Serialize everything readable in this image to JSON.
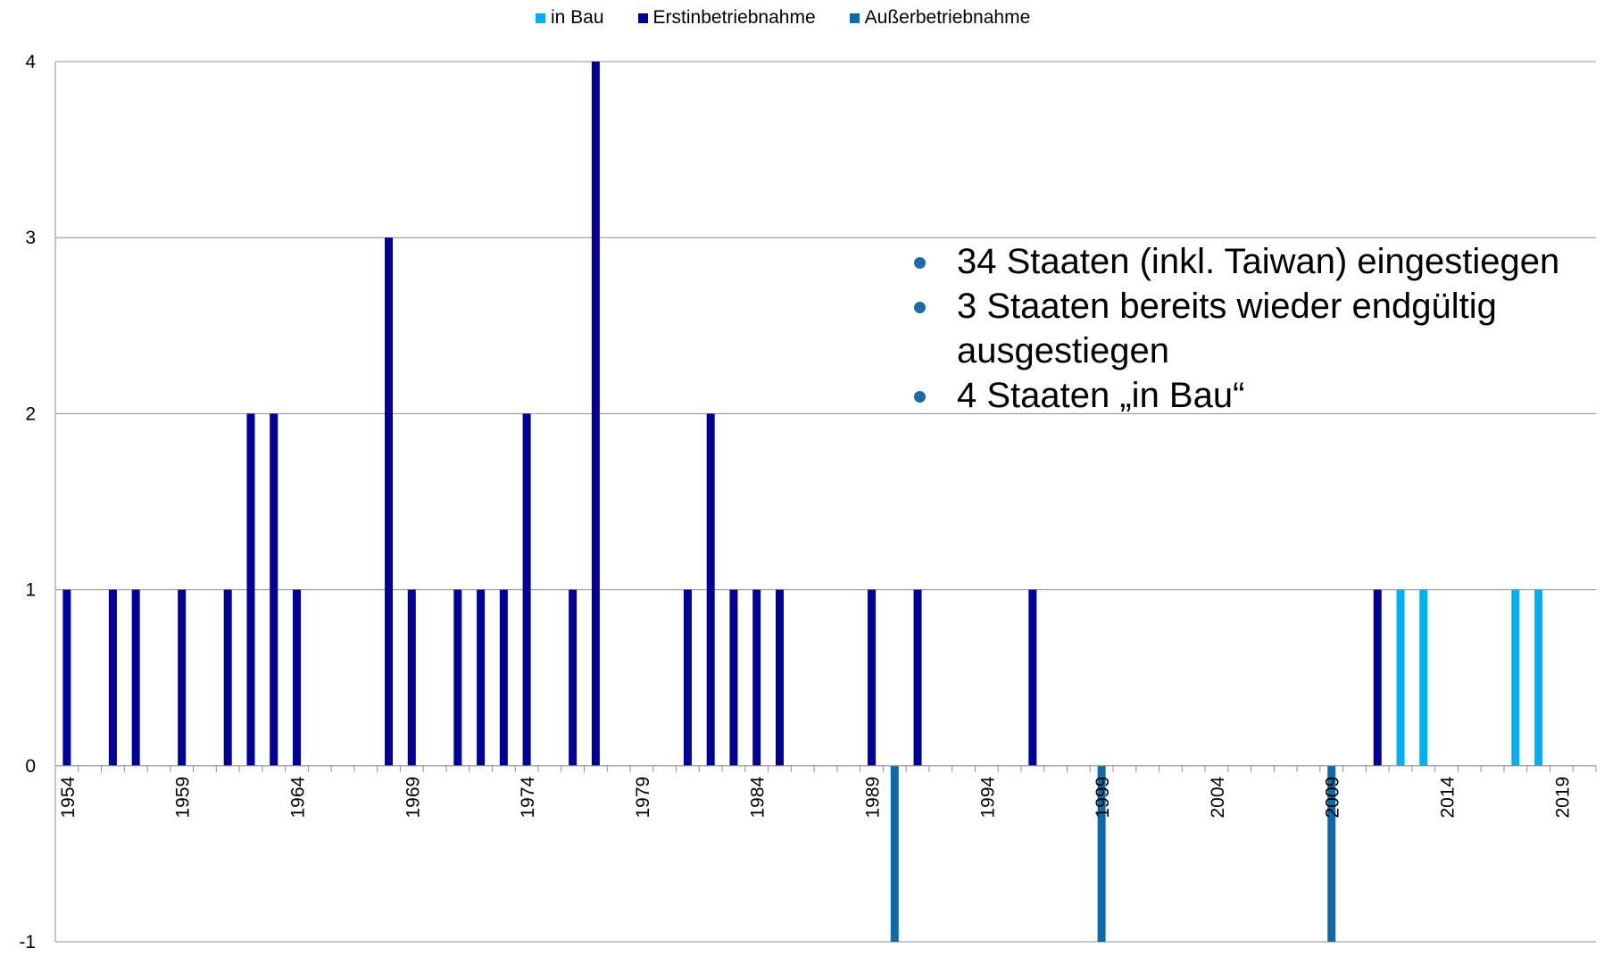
{
  "chart_data": {
    "type": "bar",
    "title": "",
    "xlabel": "",
    "ylabel": "",
    "ylim": [
      -1,
      4
    ],
    "yticks": [
      -1,
      0,
      1,
      2,
      3,
      4
    ],
    "x_start": 1954,
    "x_end": 2020,
    "x_tick_labels": [
      "1954",
      "1959",
      "1964",
      "1969",
      "1974",
      "1979",
      "1984",
      "1989",
      "1994",
      "1999",
      "2004",
      "2009",
      "2014",
      "2019"
    ],
    "grid": "horizontal",
    "legend": "top",
    "series": [
      {
        "name": "in Bau",
        "color": "#00b0f0",
        "points": [
          [
            2012,
            1
          ],
          [
            2013,
            1
          ],
          [
            2017,
            1
          ],
          [
            2018,
            1
          ]
        ]
      },
      {
        "name": "Erstinbetriebnahme",
        "color": "#000099",
        "points": [
          [
            1954,
            1
          ],
          [
            1956,
            1
          ],
          [
            1957,
            1
          ],
          [
            1959,
            1
          ],
          [
            1961,
            1
          ],
          [
            1962,
            2
          ],
          [
            1963,
            2
          ],
          [
            1964,
            1
          ],
          [
            1968,
            3
          ],
          [
            1969,
            1
          ],
          [
            1971,
            1
          ],
          [
            1972,
            1
          ],
          [
            1973,
            1
          ],
          [
            1974,
            2
          ],
          [
            1976,
            1
          ],
          [
            1977,
            4
          ],
          [
            1981,
            1
          ],
          [
            1982,
            2
          ],
          [
            1983,
            1
          ],
          [
            1984,
            1
          ],
          [
            1985,
            1
          ],
          [
            1989,
            1
          ],
          [
            1991,
            1
          ],
          [
            1996,
            1
          ],
          [
            2011,
            1
          ]
        ]
      },
      {
        "name": "Außerbetriebnahme",
        "color": "#0e6aa8",
        "points": [
          [
            1990,
            -1
          ],
          [
            1999,
            -1
          ],
          [
            2009,
            -1
          ]
        ]
      }
    ]
  },
  "notes": [
    "34 Staaten (inkl. Taiwan) eingestiegen",
    "3 Staaten bereits wieder endgültig ausgestiegen",
    "4 Staaten „in Bau“"
  ]
}
